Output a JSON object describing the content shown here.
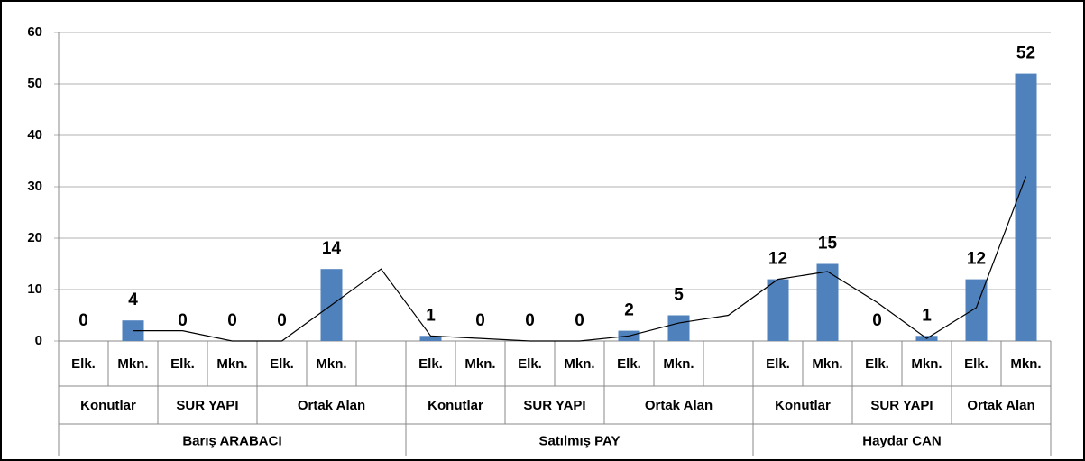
{
  "chart_data": {
    "type": "bar",
    "categories": [
      "Elk.",
      "Mkn.",
      "Elk.",
      "Mkn.",
      "Elk.",
      "Mkn.",
      null,
      "Elk.",
      "Mkn.",
      "Elk.",
      "Mkn.",
      "Elk.",
      "Mkn.",
      null,
      "Elk.",
      "Mkn.",
      "Elk.",
      "Mkn.",
      "Elk.",
      "Mkn."
    ],
    "subgroups": [
      {
        "label": "Konutlar",
        "count": 2
      },
      {
        "label": "SUR YAPI",
        "count": 2
      },
      {
        "label": "Ortak Alan",
        "count": 3
      },
      {
        "label": "Konutlar",
        "count": 2
      },
      {
        "label": "SUR YAPI",
        "count": 2
      },
      {
        "label": "Ortak Alan",
        "count": 3
      },
      {
        "label": "Konutlar",
        "count": 2
      },
      {
        "label": "SUR YAPI",
        "count": 2
      },
      {
        "label": "Ortak Alan",
        "count": 2
      }
    ],
    "groups": [
      {
        "label": "Barış ARABACI",
        "count": 7
      },
      {
        "label": "Satılmış PAY",
        "count": 7
      },
      {
        "label": "Haydar CAN",
        "count": 6
      }
    ],
    "series": [
      {
        "type": "bar",
        "color": "#4f81bd",
        "values": [
          0,
          4,
          0,
          0,
          0,
          14,
          null,
          1,
          0,
          0,
          0,
          2,
          5,
          null,
          12,
          15,
          0,
          1,
          12,
          52
        ]
      },
      {
        "type": "line",
        "color": "#000000",
        "values": [
          null,
          2,
          2,
          0,
          0,
          7,
          14,
          1,
          0.5,
          0,
          0,
          1,
          3.5,
          5,
          12,
          13.5,
          7.5,
          0.5,
          6.5,
          32
        ]
      }
    ],
    "ylim": [
      0,
      60
    ],
    "yticks": [
      0,
      10,
      20,
      30,
      40,
      50,
      60
    ],
    "grid": true
  }
}
